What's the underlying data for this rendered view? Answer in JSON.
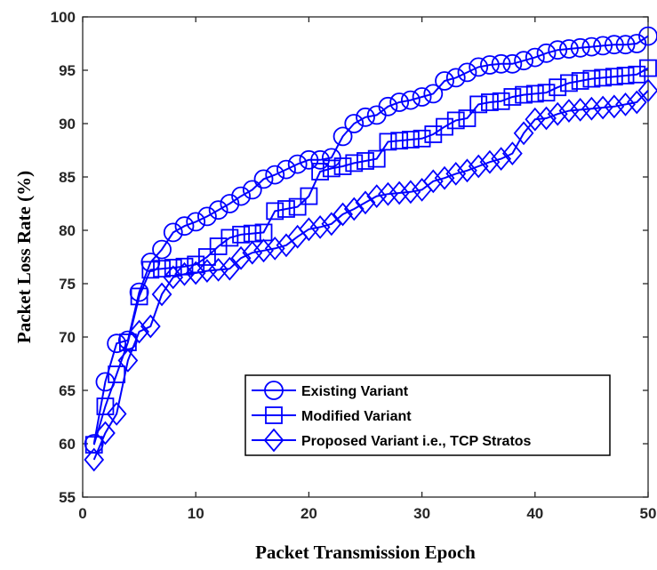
{
  "chart_data": {
    "type": "line",
    "xlabel": "Packet Transmission Epoch",
    "ylabel": "Packet Loss Rate (%)",
    "xlim": [
      0,
      50
    ],
    "ylim": [
      55,
      100
    ],
    "xticks": [
      0,
      10,
      20,
      30,
      40,
      50
    ],
    "yticks": [
      55,
      60,
      65,
      70,
      75,
      80,
      85,
      90,
      95,
      100
    ],
    "grid": false,
    "legend_position": "bottom-right",
    "line_color": "#0000ff",
    "x": [
      1,
      2,
      3,
      4,
      5,
      6,
      7,
      8,
      9,
      10,
      11,
      12,
      13,
      14,
      15,
      16,
      17,
      18,
      19,
      20,
      21,
      22,
      23,
      24,
      25,
      26,
      27,
      28,
      29,
      30,
      31,
      32,
      33,
      34,
      35,
      36,
      37,
      38,
      39,
      40,
      41,
      42,
      43,
      44,
      45,
      46,
      47,
      48,
      49,
      50
    ],
    "series": [
      {
        "name": "Existing Variant",
        "marker": "circle",
        "values": [
          60.0,
          65.8,
          69.4,
          69.7,
          74.2,
          77.0,
          78.2,
          79.8,
          80.4,
          80.8,
          81.3,
          81.9,
          82.5,
          83.2,
          83.8,
          84.8,
          85.2,
          85.7,
          86.2,
          86.6,
          86.6,
          86.8,
          88.8,
          90.0,
          90.6,
          90.8,
          91.6,
          92.0,
          92.2,
          92.5,
          92.8,
          94.0,
          94.3,
          94.8,
          95.3,
          95.5,
          95.6,
          95.6,
          95.9,
          96.2,
          96.6,
          96.9,
          97.0,
          97.1,
          97.2,
          97.3,
          97.4,
          97.4,
          97.5,
          98.2
        ]
      },
      {
        "name": "Modified Variant",
        "marker": "square",
        "values": [
          59.9,
          63.5,
          66.5,
          69.5,
          73.8,
          76.3,
          76.4,
          76.5,
          76.6,
          76.8,
          77.5,
          78.5,
          79.3,
          79.6,
          79.7,
          79.8,
          81.8,
          82.0,
          82.2,
          83.2,
          85.5,
          85.8,
          86.0,
          86.3,
          86.5,
          86.7,
          88.3,
          88.4,
          88.5,
          88.6,
          89.0,
          89.7,
          90.3,
          90.5,
          91.8,
          92.0,
          92.1,
          92.5,
          92.7,
          92.8,
          92.9,
          93.4,
          93.8,
          94.0,
          94.2,
          94.3,
          94.4,
          94.5,
          94.6,
          95.2
        ]
      },
      {
        "name": "Proposed Variant i.e., TCP Stratos",
        "marker": "diamond",
        "values": [
          58.5,
          61.0,
          62.8,
          67.8,
          70.5,
          71.0,
          74.0,
          75.6,
          75.9,
          76.0,
          76.2,
          76.3,
          76.4,
          77.4,
          77.9,
          78.1,
          78.3,
          78.6,
          79.4,
          80.1,
          80.3,
          80.6,
          81.5,
          82.0,
          82.6,
          83.2,
          83.4,
          83.5,
          83.6,
          83.8,
          84.6,
          84.9,
          85.3,
          85.6,
          86.0,
          86.4,
          86.7,
          87.2,
          89.1,
          90.4,
          90.5,
          90.9,
          91.2,
          91.3,
          91.4,
          91.5,
          91.6,
          91.8,
          92.0,
          93.1
        ]
      }
    ]
  }
}
